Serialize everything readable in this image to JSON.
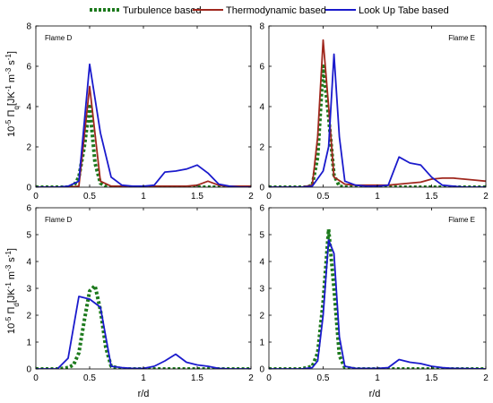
{
  "legend": [
    {
      "name": "Turbulence based",
      "color": "#1d7a1d",
      "dash": "dotted"
    },
    {
      "name": "Thermodynamic based",
      "color": "#a0281e",
      "dash": "solid"
    },
    {
      "name": "Look Up Tabe based",
      "color": "#1a1acc",
      "dash": "solid"
    }
  ],
  "ylabel_top": "10^-5 Π_q[JK^-1 m^-3 s^-1]",
  "ylabel_bottom": "10^-5 Π_d[JK^-1 m^-3 s^-1]",
  "xlabel": "r/d",
  "chart_data": [
    {
      "type": "line",
      "panel": "top-left",
      "label": "Flame D",
      "xlim": [
        0,
        2
      ],
      "ylim": [
        0,
        8
      ],
      "xticks": [
        0,
        0.5,
        1,
        1.5,
        2
      ],
      "yticks": [
        0,
        2,
        4,
        6,
        8
      ],
      "series": [
        {
          "name": "Turbulence based",
          "x": [
            0,
            0.1,
            0.2,
            0.3,
            0.35,
            0.4,
            0.45,
            0.5,
            0.55,
            0.6,
            0.65,
            0.7,
            0.8,
            1.0,
            1.2,
            1.4,
            1.6,
            1.8,
            2.0
          ],
          "y": [
            0,
            0,
            0,
            0,
            0.05,
            0.5,
            2.0,
            4.0,
            1.2,
            0.2,
            0.05,
            0,
            0,
            0,
            0,
            0,
            0,
            0,
            0
          ]
        },
        {
          "name": "Thermodynamic based",
          "x": [
            0,
            0.1,
            0.2,
            0.3,
            0.4,
            0.5,
            0.6,
            0.7,
            0.8,
            0.9,
            1.0,
            1.1,
            1.2,
            1.3,
            1.4,
            1.5,
            1.6,
            1.7,
            1.8,
            1.9,
            2.0
          ],
          "y": [
            0,
            0,
            0,
            0,
            0.05,
            5.0,
            0.3,
            0.05,
            0.05,
            0.05,
            0.05,
            0.05,
            0.05,
            0.05,
            0.05,
            0.1,
            0.3,
            0.1,
            0.05,
            0.05,
            0.05
          ]
        },
        {
          "name": "Look Up Tabe based",
          "x": [
            0,
            0.1,
            0.2,
            0.3,
            0.4,
            0.5,
            0.6,
            0.7,
            0.8,
            0.9,
            1.0,
            1.1,
            1.2,
            1.3,
            1.4,
            1.5,
            1.6,
            1.7,
            1.8,
            1.9,
            2.0
          ],
          "y": [
            0,
            0,
            0,
            0.05,
            0.3,
            6.1,
            2.7,
            0.5,
            0.1,
            0.05,
            0.05,
            0.1,
            0.75,
            0.8,
            0.9,
            1.1,
            0.7,
            0.15,
            0.05,
            0,
            0
          ]
        }
      ]
    },
    {
      "type": "line",
      "panel": "top-right",
      "label": "Flame E",
      "xlim": [
        0,
        2
      ],
      "ylim": [
        0,
        8
      ],
      "xticks": [
        0,
        0.5,
        1,
        1.5,
        2
      ],
      "yticks": [
        0,
        2,
        4,
        6,
        8
      ],
      "series": [
        {
          "name": "Turbulence based",
          "x": [
            0,
            0.1,
            0.2,
            0.3,
            0.35,
            0.4,
            0.45,
            0.5,
            0.55,
            0.6,
            0.65,
            0.7,
            0.8,
            1.0,
            1.2,
            1.4,
            1.6,
            1.8,
            2.0
          ],
          "y": [
            0,
            0,
            0,
            0,
            0,
            0.1,
            1.5,
            6.0,
            3.5,
            0.6,
            0.05,
            0,
            0,
            0,
            0,
            0,
            0,
            0,
            0
          ]
        },
        {
          "name": "Thermodynamic based",
          "x": [
            0,
            0.1,
            0.2,
            0.3,
            0.4,
            0.45,
            0.5,
            0.55,
            0.6,
            0.7,
            0.8,
            0.9,
            1.0,
            1.1,
            1.2,
            1.3,
            1.4,
            1.5,
            1.6,
            1.7,
            1.8,
            1.9,
            2.0
          ],
          "y": [
            0,
            0,
            0,
            0,
            0.1,
            2.5,
            7.3,
            4.0,
            0.5,
            0.15,
            0.1,
            0.1,
            0.1,
            0.1,
            0.15,
            0.2,
            0.25,
            0.4,
            0.45,
            0.45,
            0.4,
            0.35,
            0.3
          ]
        },
        {
          "name": "Look Up Tabe based",
          "x": [
            0,
            0.1,
            0.2,
            0.3,
            0.4,
            0.5,
            0.55,
            0.6,
            0.65,
            0.7,
            0.8,
            0.9,
            1.0,
            1.1,
            1.2,
            1.3,
            1.4,
            1.5,
            1.6,
            1.7,
            1.8,
            1.9,
            2.0
          ],
          "y": [
            0,
            0,
            0,
            0,
            0.05,
            0.8,
            2.0,
            6.6,
            2.5,
            0.3,
            0.1,
            0.05,
            0.05,
            0.1,
            1.5,
            1.2,
            1.1,
            0.5,
            0.1,
            0.05,
            0,
            0,
            0
          ]
        }
      ]
    },
    {
      "type": "line",
      "panel": "bottom-left",
      "label": "Flame D",
      "xlim": [
        0,
        2
      ],
      "ylim": [
        0,
        6
      ],
      "xticks": [
        0,
        0.5,
        1,
        1.5,
        2
      ],
      "yticks": [
        0,
        1,
        2,
        3,
        4,
        5,
        6
      ],
      "series": [
        {
          "name": "Turbulence based",
          "x": [
            0,
            0.2,
            0.3,
            0.35,
            0.4,
            0.45,
            0.5,
            0.55,
            0.6,
            0.65,
            0.7,
            0.8,
            1.0,
            1.5,
            2.0
          ],
          "y": [
            0,
            0,
            0.05,
            0.15,
            0.6,
            1.8,
            2.9,
            3.1,
            2.2,
            0.8,
            0.1,
            0,
            0,
            0,
            0
          ]
        },
        {
          "name": "Look Up Tabe based",
          "x": [
            0,
            0.1,
            0.2,
            0.3,
            0.4,
            0.5,
            0.6,
            0.7,
            0.8,
            0.9,
            1.0,
            1.1,
            1.2,
            1.3,
            1.4,
            1.5,
            1.6,
            1.7,
            1.8,
            1.9,
            2.0
          ],
          "y": [
            0,
            0,
            0,
            0.4,
            2.7,
            2.6,
            2.3,
            0.1,
            0.05,
            0.02,
            0.02,
            0.1,
            0.3,
            0.55,
            0.25,
            0.15,
            0.1,
            0.02,
            0,
            0,
            0
          ]
        }
      ]
    },
    {
      "type": "line",
      "panel": "bottom-right",
      "label": "Flame E",
      "xlim": [
        0,
        2
      ],
      "ylim": [
        0,
        6
      ],
      "xticks": [
        0,
        0.5,
        1,
        1.5,
        2
      ],
      "yticks": [
        0,
        1,
        2,
        3,
        4,
        5,
        6
      ],
      "series": [
        {
          "name": "Turbulence based",
          "x": [
            0,
            0.3,
            0.4,
            0.45,
            0.5,
            0.55,
            0.6,
            0.65,
            0.7,
            0.8,
            1.0,
            1.5,
            2.0
          ],
          "y": [
            0,
            0,
            0.1,
            0.6,
            2.5,
            5.2,
            3.0,
            0.5,
            0.05,
            0,
            0,
            0,
            0
          ]
        },
        {
          "name": "Look Up Tabe based",
          "x": [
            0,
            0.3,
            0.4,
            0.45,
            0.5,
            0.55,
            0.6,
            0.65,
            0.7,
            0.8,
            1.0,
            1.1,
            1.2,
            1.3,
            1.4,
            1.5,
            1.6,
            1.7,
            2.0
          ],
          "y": [
            0,
            0,
            0.05,
            0.3,
            2.0,
            4.8,
            4.3,
            1.2,
            0.1,
            0.02,
            0.02,
            0.05,
            0.35,
            0.25,
            0.2,
            0.1,
            0.05,
            0.02,
            0
          ]
        }
      ]
    }
  ]
}
